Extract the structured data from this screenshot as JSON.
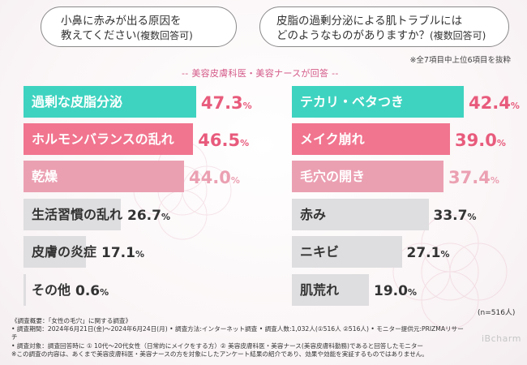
{
  "question_left": {
    "line1": "小鼻に赤みが出る原因を",
    "line2": "教えてください",
    "line3": "(複数回答可)"
  },
  "question_right": {
    "line1": "皮脂の過剰分泌による肌トラブルには",
    "line2": "どのようなものがありますか？",
    "line3": "(複数回答可)"
  },
  "note_top": "※全7項目中上位6項目を抜粋",
  "respondent": "-- 美容皮膚科医・美容ナースが回答 --",
  "colors": {
    "teal": "#3ed3c0",
    "pink": "#f1758f",
    "light_pink": "#eba0b2",
    "gray": "#dedddf",
    "pink_text": "#e85b7c",
    "dark": "#333333"
  },
  "chart_data": [
    {
      "type": "bar",
      "orientation": "horizontal",
      "title": "小鼻に赤みが出る原因を教えてください(複数回答可)",
      "categories": [
        "過剰な皮脂分泌",
        "ホルモンバランスの乱れ",
        "乾燥",
        "生活習慣の乱れ",
        "皮膚の炎症",
        "その他"
      ],
      "values": [
        47.3,
        46.5,
        44.0,
        26.7,
        17.1,
        0.6
      ],
      "value_labels": [
        {
          "num": "47.3",
          "pct": "%"
        },
        {
          "num": "46.5",
          "pct": "%"
        },
        {
          "num": "44.0",
          "pct": "%"
        },
        {
          "num": "26.7",
          "pct": "%"
        },
        {
          "num": "17.1",
          "pct": "%"
        },
        {
          "num": "0.6",
          "pct": "%"
        }
      ],
      "unit": "%"
    },
    {
      "type": "bar",
      "orientation": "horizontal",
      "title": "皮脂の過剰分泌による肌トラブルにはどのようなものがありますか？(複数回答可)",
      "categories": [
        "テカリ・ベタつき",
        "メイク崩れ",
        "毛穴の開き",
        "赤み",
        "ニキビ",
        "肌荒れ"
      ],
      "values": [
        42.4,
        39.0,
        37.4,
        33.7,
        27.1,
        19.0
      ],
      "value_labels": [
        {
          "num": "42.4",
          "pct": "%"
        },
        {
          "num": "39.0",
          "pct": "%"
        },
        {
          "num": "37.4",
          "pct": "%"
        },
        {
          "num": "33.7",
          "pct": "%"
        },
        {
          "num": "27.1",
          "pct": "%"
        },
        {
          "num": "19.0",
          "pct": "%"
        }
      ],
      "unit": "%"
    }
  ],
  "sample_size": "(n=516人)",
  "survey_notes": [
    "《調査概要：「女性の毛穴」に関する調査》",
    "• 調査期間：2024年6月21日(金)～2024年6月24日(月) • 調査方法:インターネット調査 • 調査人数:1,032人(①516人 ②516人) • モニター提供元:PRIZMAリサーチ",
    "• 調査対象：調査回答時に ① 10代～20代女性（日常的にメイクをする方）② 美容皮膚科医・美容ナース(美容皮膚科勤務)であると回答したモニター",
    "※この調査の内容は、あくまで美容皮膚科医・美容ナースの方を対象にしたアンケート結果の紹介であり、効果や効能を実証するものではありません。"
  ],
  "brand": "iBcharm"
}
